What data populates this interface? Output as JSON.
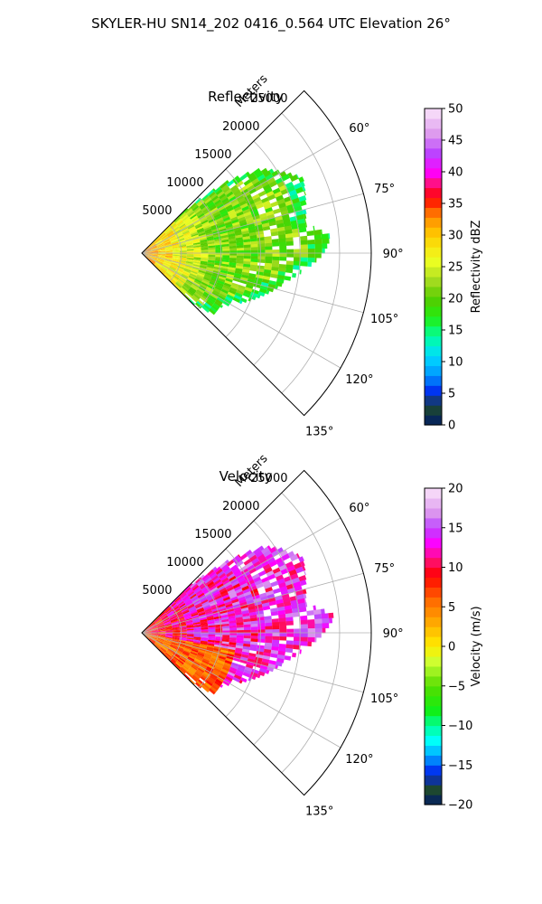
{
  "figure": {
    "title": "SKYLER-HU  SN14_202  0416_0.564 UTC Elevation 26°"
  },
  "chart_data": [
    {
      "type": "heatmap",
      "subtype": "polar-sector",
      "title": "Reflectivity",
      "radial_label": "Meters",
      "radial_ticks": [
        5000,
        10000,
        15000,
        20000,
        25000
      ],
      "radial_tick_labels": [
        "5000",
        "10000",
        "15000",
        "20000",
        "25000"
      ],
      "r_max": 29000,
      "angle_ticks": [
        60,
        75,
        90,
        105,
        120,
        135
      ],
      "angle_tick_labels": [
        "60°",
        "75°",
        "90°",
        "105°",
        "120°",
        "135°"
      ],
      "angle_range": [
        45,
        135
      ],
      "grid": true,
      "colorbar": {
        "label": "Reflectivity dBZ",
        "range": [
          0,
          50
        ],
        "ticks": [
          0,
          5,
          10,
          15,
          20,
          25,
          30,
          35,
          40,
          45,
          50
        ],
        "tick_labels": [
          "0",
          "5",
          "10",
          "15",
          "20",
          "25",
          "30",
          "35",
          "40",
          "45",
          "50"
        ],
        "stops": [
          {
            "v": 0,
            "c": "#001a66"
          },
          {
            "v": 3,
            "c": "#1f4a2c"
          },
          {
            "v": 5,
            "c": "#0022ee"
          },
          {
            "v": 8,
            "c": "#0099ff"
          },
          {
            "v": 11,
            "c": "#00ddff"
          },
          {
            "v": 14,
            "c": "#00ffa0"
          },
          {
            "v": 17,
            "c": "#22ee11"
          },
          {
            "v": 20,
            "c": "#55cc00"
          },
          {
            "v": 23,
            "c": "#aadd22"
          },
          {
            "v": 26,
            "c": "#eeff22"
          },
          {
            "v": 30,
            "c": "#ffcc00"
          },
          {
            "v": 33,
            "c": "#ff8800"
          },
          {
            "v": 36,
            "c": "#ff0000"
          },
          {
            "v": 38,
            "c": "#ff1177"
          },
          {
            "v": 40,
            "c": "#ff00ff"
          },
          {
            "v": 43,
            "c": "#bb44ff"
          },
          {
            "v": 46,
            "c": "#dd99ee"
          },
          {
            "v": 50,
            "c": "#fbe6fb"
          }
        ]
      },
      "echo_summary": {
        "outer_range_by_angle": [
          [
            45,
            7000
          ],
          [
            50,
            14000
          ],
          [
            55,
            18500
          ],
          [
            60,
            20500
          ],
          [
            65,
            22500
          ],
          [
            70,
            22000
          ],
          [
            75,
            21500
          ],
          [
            80,
            21000
          ],
          [
            85,
            24000
          ],
          [
            90,
            23000
          ],
          [
            95,
            21000
          ],
          [
            100,
            19000
          ],
          [
            105,
            17500
          ],
          [
            110,
            16000
          ],
          [
            115,
            14500
          ],
          [
            120,
            13000
          ],
          [
            125,
            12000
          ],
          [
            130,
            12000
          ],
          [
            135,
            9000
          ]
        ],
        "typical_value": 21,
        "near_core_value": 32
      }
    },
    {
      "type": "heatmap",
      "subtype": "polar-sector",
      "title": "Velocity",
      "radial_label": "Meters",
      "radial_ticks": [
        5000,
        10000,
        15000,
        20000,
        25000
      ],
      "radial_tick_labels": [
        "5000",
        "10000",
        "15000",
        "20000",
        "25000"
      ],
      "r_max": 29000,
      "angle_ticks": [
        60,
        75,
        90,
        105,
        120,
        135
      ],
      "angle_tick_labels": [
        "60°",
        "75°",
        "90°",
        "105°",
        "120°",
        "135°"
      ],
      "angle_range": [
        45,
        135
      ],
      "grid": true,
      "colorbar": {
        "label": "Velocity (m/s)",
        "range": [
          -20,
          20
        ],
        "ticks": [
          -20,
          -15,
          -10,
          -5,
          0,
          5,
          10,
          15,
          20
        ],
        "tick_labels": [
          "−20",
          "−15",
          "−10",
          "−5",
          "0",
          "5",
          "10",
          "15",
          "20"
        ],
        "stops": [
          {
            "v": -20,
            "c": "#001a66"
          },
          {
            "v": -18,
            "c": "#1f4a2c"
          },
          {
            "v": -16,
            "c": "#0022ee"
          },
          {
            "v": -14,
            "c": "#0099ff"
          },
          {
            "v": -12,
            "c": "#00ffff"
          },
          {
            "v": -10,
            "c": "#00ff99"
          },
          {
            "v": -8,
            "c": "#11ee11"
          },
          {
            "v": -5,
            "c": "#55dd00"
          },
          {
            "v": -2,
            "c": "#ccff33"
          },
          {
            "v": 0,
            "c": "#ffee00"
          },
          {
            "v": 3,
            "c": "#ffaa00"
          },
          {
            "v": 6,
            "c": "#ff6600"
          },
          {
            "v": 9,
            "c": "#ff0000"
          },
          {
            "v": 11,
            "c": "#ff1177"
          },
          {
            "v": 13,
            "c": "#ff00ff"
          },
          {
            "v": 15,
            "c": "#bb44ff"
          },
          {
            "v": 17,
            "c": "#dd99ee"
          },
          {
            "v": 20,
            "c": "#fbe6fb"
          }
        ]
      },
      "echo_summary": {
        "outer_range_by_angle": [
          [
            45,
            8000
          ],
          [
            50,
            14000
          ],
          [
            55,
            19000
          ],
          [
            60,
            21000
          ],
          [
            65,
            22500
          ],
          [
            70,
            22000
          ],
          [
            75,
            21500
          ],
          [
            80,
            21000
          ],
          [
            85,
            24500
          ],
          [
            90,
            23000
          ],
          [
            95,
            21000
          ],
          [
            100,
            19000
          ],
          [
            105,
            17500
          ],
          [
            110,
            16000
          ],
          [
            115,
            14500
          ],
          [
            120,
            13000
          ],
          [
            125,
            12000
          ],
          [
            130,
            12000
          ],
          [
            135,
            9000
          ]
        ],
        "typical_value": 13,
        "near_core_value": 8
      }
    }
  ]
}
